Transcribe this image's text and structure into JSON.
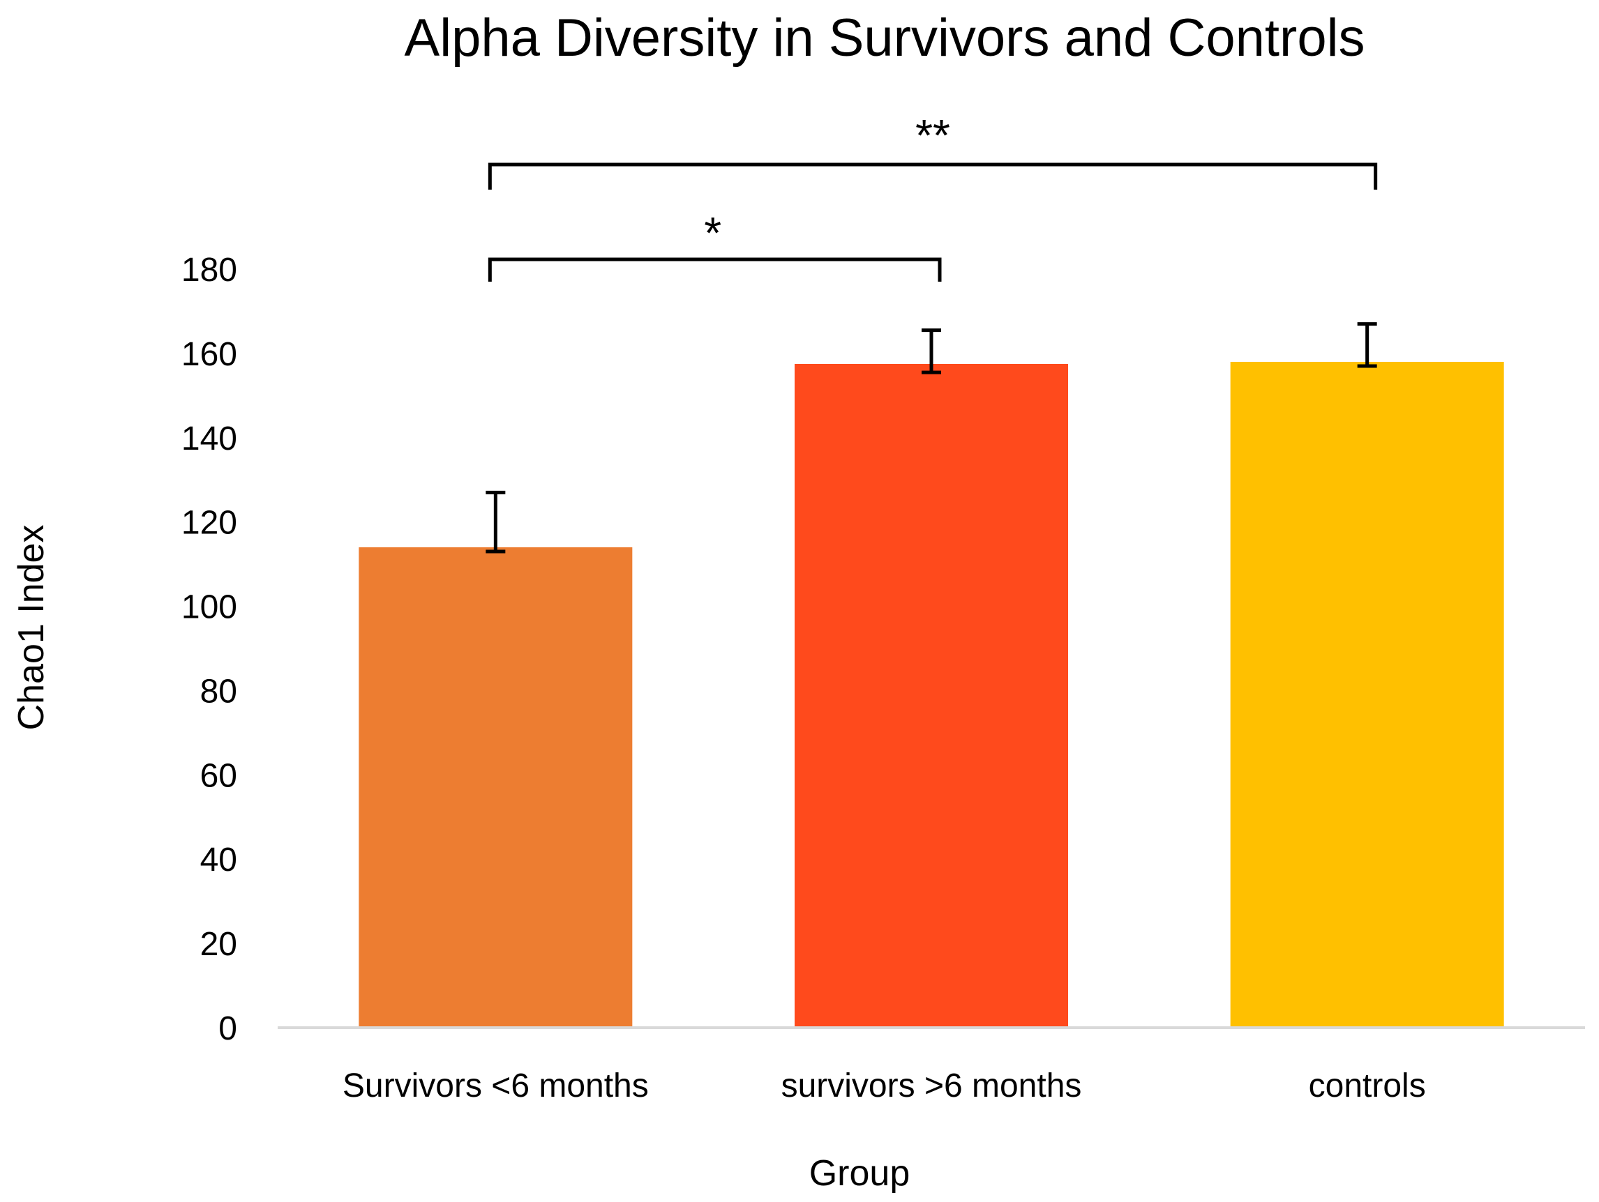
{
  "chart_data": {
    "type": "bar",
    "title": "Alpha Diversity in Survivors and Controls",
    "xlabel": "Group",
    "ylabel": "Chao1 Index",
    "categories": [
      "Survivors <6 months",
      "survivors >6 months",
      "controls"
    ],
    "values": [
      114,
      157.5,
      158
    ],
    "error_upper": [
      13,
      8,
      9
    ],
    "error_lower": [
      1,
      2,
      1
    ],
    "colors": [
      "#ED7D31",
      "#FF4A1C",
      "#FFC000"
    ],
    "ylim": [
      0,
      180
    ],
    "yticks": [
      0,
      20,
      40,
      60,
      80,
      100,
      120,
      140,
      160,
      180
    ],
    "grid": false,
    "significance": [
      {
        "from": 0,
        "to": 1,
        "label": "*"
      },
      {
        "from": 0,
        "to": 2,
        "label": "**"
      }
    ]
  }
}
